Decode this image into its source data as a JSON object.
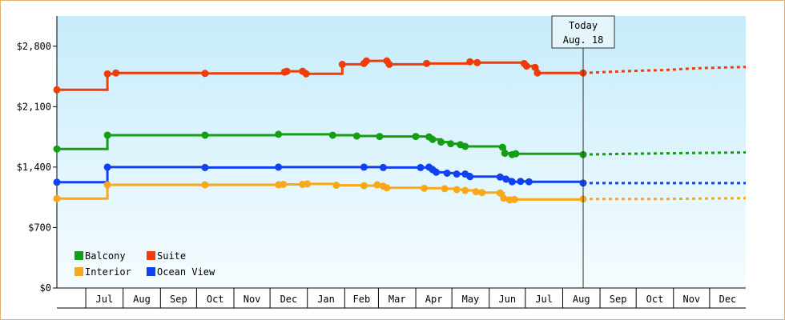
{
  "chart_data": {
    "type": "line",
    "title": "",
    "xlabel": "",
    "ylabel": "",
    "ylim": [
      0,
      3150
    ],
    "y_ticks": [
      {
        "value": 0,
        "label": "$0"
      },
      {
        "value": 700,
        "label": "$700"
      },
      {
        "value": 1400,
        "label": "$1,400"
      },
      {
        "value": 2100,
        "label": "$2,100"
      },
      {
        "value": 2800,
        "label": "$2,800"
      }
    ],
    "x_range": [
      "2017-06-07",
      "2018-12-31"
    ],
    "month_ticks": [
      {
        "label": "Jul",
        "date": "2017-07-01"
      },
      {
        "label": "Aug",
        "date": "2017-08-01"
      },
      {
        "label": "Sep",
        "date": "2017-09-01"
      },
      {
        "label": "Oct",
        "date": "2017-10-01"
      },
      {
        "label": "Nov",
        "date": "2017-11-01"
      },
      {
        "label": "Dec",
        "date": "2017-12-01"
      },
      {
        "label": "Jan",
        "date": "2018-01-01"
      },
      {
        "label": "Feb",
        "date": "2018-02-01"
      },
      {
        "label": "Mar",
        "date": "2018-03-01"
      },
      {
        "label": "Apr",
        "date": "2018-04-01"
      },
      {
        "label": "May",
        "date": "2018-05-01"
      },
      {
        "label": "Jun",
        "date": "2018-06-01"
      },
      {
        "label": "Jul",
        "date": "2018-07-01"
      },
      {
        "label": "Aug",
        "date": "2018-08-01"
      },
      {
        "label": "Sep",
        "date": "2018-09-01"
      },
      {
        "label": "Oct",
        "date": "2018-10-01"
      },
      {
        "label": "Nov",
        "date": "2018-11-01"
      },
      {
        "label": "Dec",
        "date": "2018-12-01"
      }
    ],
    "today": {
      "date": "2018-08-18",
      "line1": "Today",
      "line2": "Aug. 18"
    },
    "grid": false,
    "legend_position": "bottom-left",
    "series": [
      {
        "name": "Suite",
        "color": "#f03c0a",
        "points": [
          {
            "date": "2017-06-07",
            "value": 2295
          },
          {
            "date": "2017-07-19",
            "value": 2480
          },
          {
            "date": "2017-07-26",
            "value": 2490
          },
          {
            "date": "2017-10-08",
            "value": 2485
          },
          {
            "date": "2017-12-13",
            "value": 2500
          },
          {
            "date": "2017-12-15",
            "value": 2510
          },
          {
            "date": "2017-12-28",
            "value": 2510
          },
          {
            "date": "2017-12-31",
            "value": 2480
          },
          {
            "date": "2018-01-30",
            "value": 2590
          },
          {
            "date": "2018-02-17",
            "value": 2600
          },
          {
            "date": "2018-02-19",
            "value": 2630
          },
          {
            "date": "2018-03-08",
            "value": 2630
          },
          {
            "date": "2018-03-10",
            "value": 2590
          },
          {
            "date": "2018-04-10",
            "value": 2600
          },
          {
            "date": "2018-05-16",
            "value": 2620
          },
          {
            "date": "2018-05-22",
            "value": 2610
          },
          {
            "date": "2018-06-30",
            "value": 2600
          },
          {
            "date": "2018-07-02",
            "value": 2570
          },
          {
            "date": "2018-07-09",
            "value": 2555
          },
          {
            "date": "2018-07-11",
            "value": 2490
          },
          {
            "date": "2018-08-18",
            "value": 2490
          }
        ],
        "forecast": [
          {
            "date": "2018-08-18",
            "value": 2490
          },
          {
            "date": "2018-09-20",
            "value": 2510
          },
          {
            "date": "2018-10-25",
            "value": 2525
          },
          {
            "date": "2018-11-20",
            "value": 2545
          },
          {
            "date": "2018-12-31",
            "value": 2560
          }
        ]
      },
      {
        "name": "Balcony",
        "color": "#12a012",
        "points": [
          {
            "date": "2017-06-07",
            "value": 1610
          },
          {
            "date": "2017-07-19",
            "value": 1770
          },
          {
            "date": "2017-10-08",
            "value": 1770
          },
          {
            "date": "2017-12-08",
            "value": 1780
          },
          {
            "date": "2018-01-22",
            "value": 1770
          },
          {
            "date": "2018-02-11",
            "value": 1760
          },
          {
            "date": "2018-03-02",
            "value": 1755
          },
          {
            "date": "2018-04-01",
            "value": 1755
          },
          {
            "date": "2018-04-12",
            "value": 1750
          },
          {
            "date": "2018-04-15",
            "value": 1720
          },
          {
            "date": "2018-04-22",
            "value": 1690
          },
          {
            "date": "2018-04-30",
            "value": 1670
          },
          {
            "date": "2018-05-08",
            "value": 1660
          },
          {
            "date": "2018-05-12",
            "value": 1640
          },
          {
            "date": "2018-06-12",
            "value": 1630
          },
          {
            "date": "2018-06-14",
            "value": 1560
          },
          {
            "date": "2018-06-20",
            "value": 1545
          },
          {
            "date": "2018-06-23",
            "value": 1555
          },
          {
            "date": "2018-08-18",
            "value": 1545
          }
        ],
        "forecast": [
          {
            "date": "2018-08-18",
            "value": 1545
          },
          {
            "date": "2018-09-25",
            "value": 1555
          },
          {
            "date": "2018-10-30",
            "value": 1560
          },
          {
            "date": "2018-12-31",
            "value": 1570
          }
        ]
      },
      {
        "name": "Ocean View",
        "color": "#1040f0",
        "points": [
          {
            "date": "2017-06-07",
            "value": 1225
          },
          {
            "date": "2017-07-19",
            "value": 1400
          },
          {
            "date": "2017-10-08",
            "value": 1395
          },
          {
            "date": "2017-12-08",
            "value": 1400
          },
          {
            "date": "2018-02-17",
            "value": 1400
          },
          {
            "date": "2018-03-05",
            "value": 1395
          },
          {
            "date": "2018-04-05",
            "value": 1395
          },
          {
            "date": "2018-04-12",
            "value": 1400
          },
          {
            "date": "2018-04-15",
            "value": 1370
          },
          {
            "date": "2018-04-18",
            "value": 1340
          },
          {
            "date": "2018-04-27",
            "value": 1330
          },
          {
            "date": "2018-05-05",
            "value": 1320
          },
          {
            "date": "2018-05-12",
            "value": 1320
          },
          {
            "date": "2018-05-16",
            "value": 1290
          },
          {
            "date": "2018-06-10",
            "value": 1285
          },
          {
            "date": "2018-06-15",
            "value": 1260
          },
          {
            "date": "2018-06-20",
            "value": 1230
          },
          {
            "date": "2018-06-27",
            "value": 1235
          },
          {
            "date": "2018-07-04",
            "value": 1230
          },
          {
            "date": "2018-08-18",
            "value": 1215
          }
        ],
        "forecast": [
          {
            "date": "2018-08-18",
            "value": 1215
          },
          {
            "date": "2018-10-01",
            "value": 1215
          },
          {
            "date": "2018-12-31",
            "value": 1215
          }
        ]
      },
      {
        "name": "Interior",
        "color": "#f8a818",
        "points": [
          {
            "date": "2017-06-07",
            "value": 1035
          },
          {
            "date": "2017-07-19",
            "value": 1195
          },
          {
            "date": "2017-10-08",
            "value": 1195
          },
          {
            "date": "2017-12-08",
            "value": 1195
          },
          {
            "date": "2017-12-12",
            "value": 1200
          },
          {
            "date": "2017-12-28",
            "value": 1200
          },
          {
            "date": "2018-01-01",
            "value": 1205
          },
          {
            "date": "2018-01-25",
            "value": 1190
          },
          {
            "date": "2018-02-17",
            "value": 1185
          },
          {
            "date": "2018-02-28",
            "value": 1195
          },
          {
            "date": "2018-03-05",
            "value": 1180
          },
          {
            "date": "2018-03-08",
            "value": 1160
          },
          {
            "date": "2018-04-08",
            "value": 1155
          },
          {
            "date": "2018-04-25",
            "value": 1150
          },
          {
            "date": "2018-05-05",
            "value": 1140
          },
          {
            "date": "2018-05-12",
            "value": 1130
          },
          {
            "date": "2018-05-21",
            "value": 1115
          },
          {
            "date": "2018-05-26",
            "value": 1105
          },
          {
            "date": "2018-06-10",
            "value": 1100
          },
          {
            "date": "2018-06-13",
            "value": 1040
          },
          {
            "date": "2018-06-18",
            "value": 1020
          },
          {
            "date": "2018-06-22",
            "value": 1025
          },
          {
            "date": "2018-08-18",
            "value": 1030
          }
        ],
        "forecast": [
          {
            "date": "2018-08-18",
            "value": 1030
          },
          {
            "date": "2018-10-20",
            "value": 1030
          },
          {
            "date": "2018-12-31",
            "value": 1040
          }
        ]
      }
    ],
    "legend": [
      {
        "name": "Balcony",
        "color": "#12a012"
      },
      {
        "name": "Suite",
        "color": "#f03c0a"
      },
      {
        "name": "Interior",
        "color": "#f8a818"
      },
      {
        "name": "Ocean View",
        "color": "#1040f0"
      }
    ]
  }
}
